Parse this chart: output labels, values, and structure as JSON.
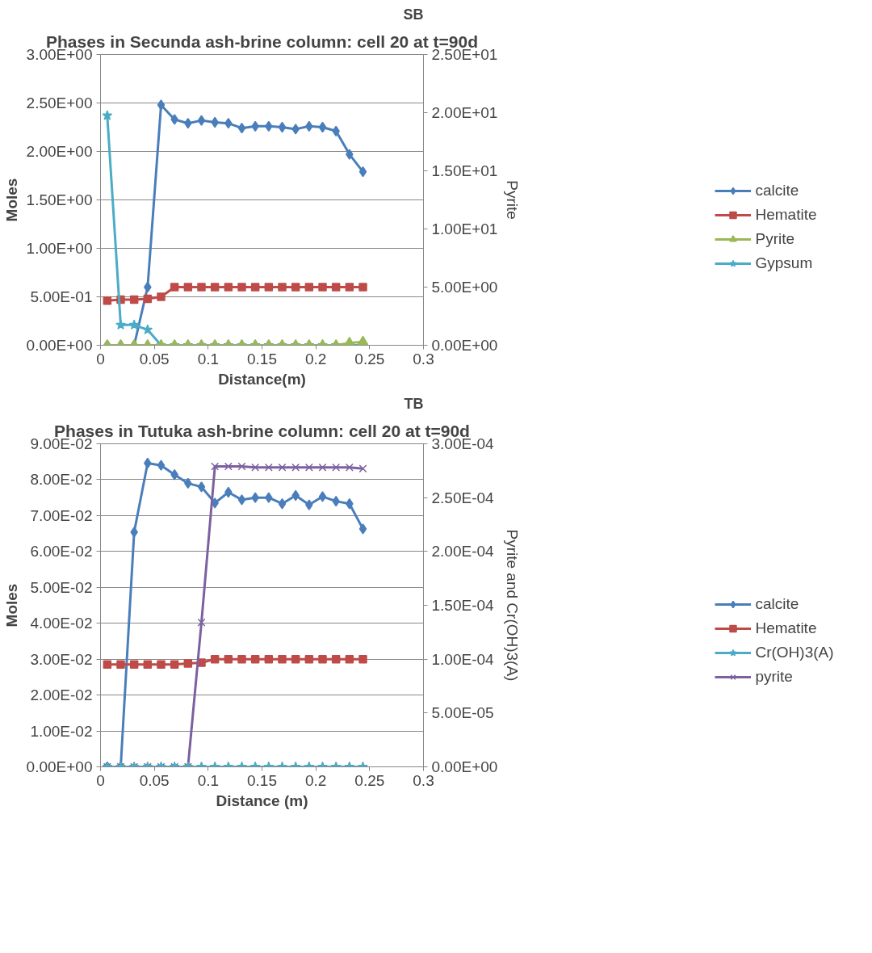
{
  "chart_data": [
    {
      "type": "line",
      "title": "Phases in Secunda ash-brine column: cell 20 at t=90d",
      "annotations": [
        "SB"
      ],
      "xlabel": "Distance(m)",
      "ylabel": "Moles",
      "y2label": "Pyrite",
      "x": [
        0.00625,
        0.01875,
        0.03125,
        0.04375,
        0.05625,
        0.06875,
        0.08125,
        0.09375,
        0.10625,
        0.11875,
        0.13125,
        0.14375,
        0.15625,
        0.16875,
        0.18125,
        0.19375,
        0.20625,
        0.21875,
        0.23125,
        0.24375
      ],
      "series": [
        {
          "name": "calcite",
          "color": "#4a7ebb",
          "marker": "diamond",
          "values": [
            0,
            0,
            0,
            0.6,
            2.48,
            2.33,
            2.29,
            2.32,
            2.3,
            2.29,
            2.24,
            2.26,
            2.26,
            2.25,
            2.23,
            2.26,
            2.25,
            2.21,
            1.97,
            1.79
          ]
        },
        {
          "name": "Hematite",
          "color": "#be4b48",
          "marker": "square",
          "values": [
            0.46,
            0.47,
            0.47,
            0.48,
            0.5,
            0.6,
            0.6,
            0.6,
            0.6,
            0.6,
            0.6,
            0.6,
            0.6,
            0.6,
            0.6,
            0.6,
            0.6,
            0.6,
            0.6,
            0.6
          ]
        },
        {
          "name": "Pyrite",
          "color": "#98b954",
          "marker": "triangle",
          "axis": "y2",
          "values": [
            0,
            0,
            0,
            0,
            0,
            0,
            0,
            0,
            0,
            0,
            0,
            0,
            0,
            0,
            0,
            0,
            0,
            0,
            0.2,
            0.3
          ]
        },
        {
          "name": "Gypsum",
          "color": "#4bacc6",
          "marker": "star",
          "values": [
            2.37,
            0.21,
            0.21,
            0.16,
            0,
            0,
            0,
            0,
            0,
            0,
            0,
            0,
            0,
            0,
            0,
            0,
            0,
            0,
            0,
            0
          ]
        }
      ],
      "xlim": [
        0,
        0.3
      ],
      "xticks": [
        0,
        0.05,
        0.1,
        0.15,
        0.2,
        0.25,
        0.3
      ],
      "ylim": [
        0,
        3
      ],
      "yticks": [
        {
          "value": 0,
          "label": "0.00E+00"
        },
        {
          "value": 0.5,
          "label": "5.00E-01"
        },
        {
          "value": 1,
          "label": "1.00E+00"
        },
        {
          "value": 1.5,
          "label": "1.50E+00"
        },
        {
          "value": 2,
          "label": "2.00E+00"
        },
        {
          "value": 2.5,
          "label": "2.50E+00"
        },
        {
          "value": 3,
          "label": "3.00E+00"
        }
      ],
      "y2lim": [
        0,
        25
      ],
      "y2ticks": [
        {
          "value": 0,
          "label": "0.00E+00"
        },
        {
          "value": 5,
          "label": "5.00E+00"
        },
        {
          "value": 10,
          "label": "1.00E+01"
        },
        {
          "value": 15,
          "label": "1.50E+01"
        },
        {
          "value": 20,
          "label": "2.00E+01"
        },
        {
          "value": 25,
          "label": "2.50E+01"
        }
      ],
      "grid": "y",
      "legend": "right"
    },
    {
      "type": "line",
      "title": "Phases in Tutuka ash-brine column: cell 20 at t=90d",
      "annotations": [
        "TB"
      ],
      "xlabel": "Distance (m)",
      "ylabel": "Moles",
      "y2label": "Pyrite and Cr(OH)3(A)",
      "x": [
        0.00625,
        0.01875,
        0.03125,
        0.04375,
        0.05625,
        0.06875,
        0.08125,
        0.09375,
        0.10625,
        0.11875,
        0.13125,
        0.14375,
        0.15625,
        0.16875,
        0.18125,
        0.19375,
        0.20625,
        0.21875,
        0.23125,
        0.24375
      ],
      "series": [
        {
          "name": "calcite",
          "color": "#4a7ebb",
          "marker": "diamond",
          "values": [
            0,
            0,
            0.0654,
            0.0846,
            0.084,
            0.0814,
            0.079,
            0.078,
            0.0735,
            0.0765,
            0.0744,
            0.075,
            0.075,
            0.0733,
            0.0756,
            0.073,
            0.0753,
            0.074,
            0.0733,
            0.0663
          ]
        },
        {
          "name": "Hematite",
          "color": "#be4b48",
          "marker": "square",
          "values": [
            0.0285,
            0.0285,
            0.0285,
            0.0285,
            0.0285,
            0.0285,
            0.0288,
            0.029,
            0.03,
            0.03,
            0.03,
            0.03,
            0.03,
            0.03,
            0.03,
            0.03,
            0.03,
            0.03,
            0.03,
            0.03
          ]
        },
        {
          "name": "Cr(OH)3(A)",
          "color": "#4bacc6",
          "marker": "star",
          "axis": "y2",
          "values": [
            0,
            0,
            0,
            0,
            0,
            0,
            0,
            0,
            0,
            0,
            0,
            0,
            0,
            0,
            0,
            0,
            0,
            0,
            0,
            0
          ]
        },
        {
          "name": "pyrite",
          "color": "#7d60a0",
          "marker": "cross",
          "axis": "y2",
          "values": [
            0,
            0,
            0,
            0,
            0,
            0,
            0,
            0.000134,
            0.000279,
            0.000279,
            0.000279,
            0.000278,
            0.000278,
            0.000278,
            0.000278,
            0.000278,
            0.000278,
            0.000278,
            0.000278,
            0.000277
          ]
        }
      ],
      "xlim": [
        0,
        0.3
      ],
      "xticks": [
        0,
        0.05,
        0.1,
        0.15,
        0.2,
        0.25,
        0.3
      ],
      "ylim": [
        0,
        0.09
      ],
      "yticks": [
        {
          "value": 0,
          "label": "0.00E+00"
        },
        {
          "value": 0.01,
          "label": "1.00E-02"
        },
        {
          "value": 0.02,
          "label": "2.00E-02"
        },
        {
          "value": 0.03,
          "label": "3.00E-02"
        },
        {
          "value": 0.04,
          "label": "4.00E-02"
        },
        {
          "value": 0.05,
          "label": "5.00E-02"
        },
        {
          "value": 0.06,
          "label": "6.00E-02"
        },
        {
          "value": 0.07,
          "label": "7.00E-02"
        },
        {
          "value": 0.08,
          "label": "8.00E-02"
        },
        {
          "value": 0.09,
          "label": "9.00E-02"
        }
      ],
      "y2lim": [
        0,
        0.0003
      ],
      "y2ticks": [
        {
          "value": 0,
          "label": "0.00E+00"
        },
        {
          "value": 5e-05,
          "label": "5.00E-05"
        },
        {
          "value": 0.0001,
          "label": "1.00E-04"
        },
        {
          "value": 0.00015,
          "label": "1.50E-04"
        },
        {
          "value": 0.0002,
          "label": "2.00E-04"
        },
        {
          "value": 0.00025,
          "label": "2.50E-04"
        },
        {
          "value": 0.0003,
          "label": "3.00E-04"
        }
      ],
      "grid": "y",
      "legend": "right"
    }
  ]
}
